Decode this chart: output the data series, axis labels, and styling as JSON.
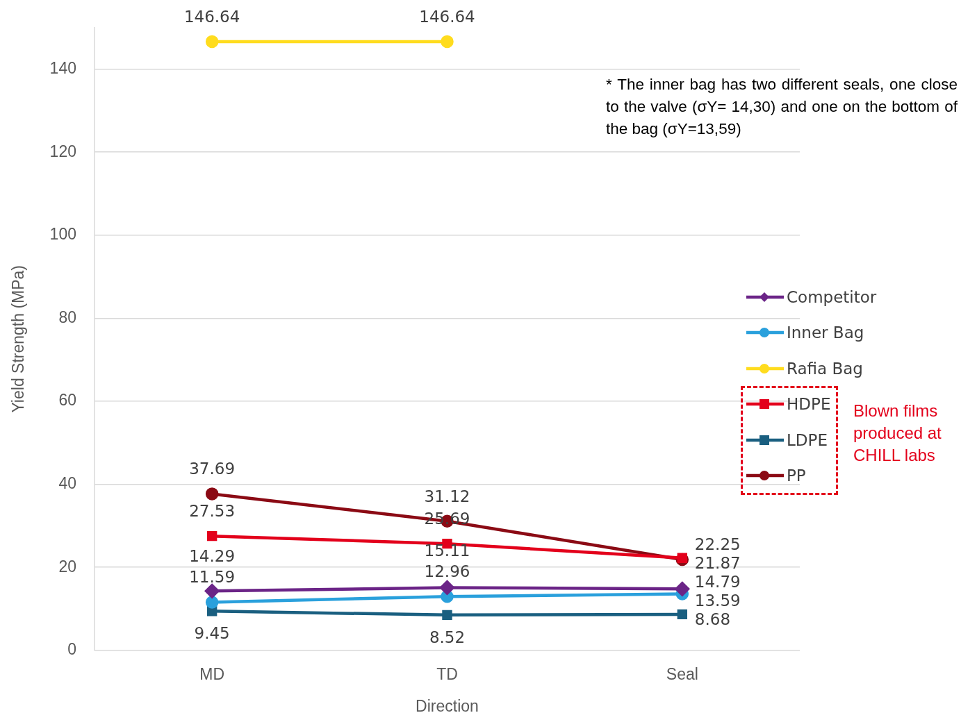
{
  "chart_data": {
    "type": "line",
    "xlabel": "Direction",
    "ylabel": "Yield Strength (MPa)",
    "categories": [
      "MD",
      "TD",
      "Seal"
    ],
    "series": [
      {
        "name": "Competitor",
        "color": "#6b2487",
        "marker": "diamond",
        "values": [
          14.29,
          15.11,
          14.79
        ]
      },
      {
        "name": "Inner Bag",
        "color": "#2aa0dc",
        "marker": "circle",
        "values": [
          11.59,
          12.96,
          13.59
        ]
      },
      {
        "name": "Rafia Bag",
        "color": "#ffdc1e",
        "marker": "circle",
        "values": [
          146.64,
          146.64,
          null
        ]
      },
      {
        "name": "HDPE",
        "color": "#e3001b",
        "marker": "square",
        "values": [
          27.53,
          25.69,
          22.25
        ]
      },
      {
        "name": "LDPE",
        "color": "#1a5f80",
        "marker": "square",
        "values": [
          9.45,
          8.52,
          8.68
        ]
      },
      {
        "name": "PP",
        "color": "#8b0a14",
        "marker": "circle",
        "values": [
          37.69,
          31.12,
          21.87
        ]
      }
    ],
    "ylim": [
      0,
      150
    ],
    "yticks": [
      0,
      20,
      40,
      60,
      80,
      100,
      120,
      140
    ],
    "grid": "y",
    "legend": "right",
    "data_labels": true,
    "annotations": [
      "* The inner bag has two different seals, one close to the valve (σY= 14,30) and one on the bottom of the bag (σY=13,59)",
      "Blown films produced at CHILL labs"
    ]
  }
}
